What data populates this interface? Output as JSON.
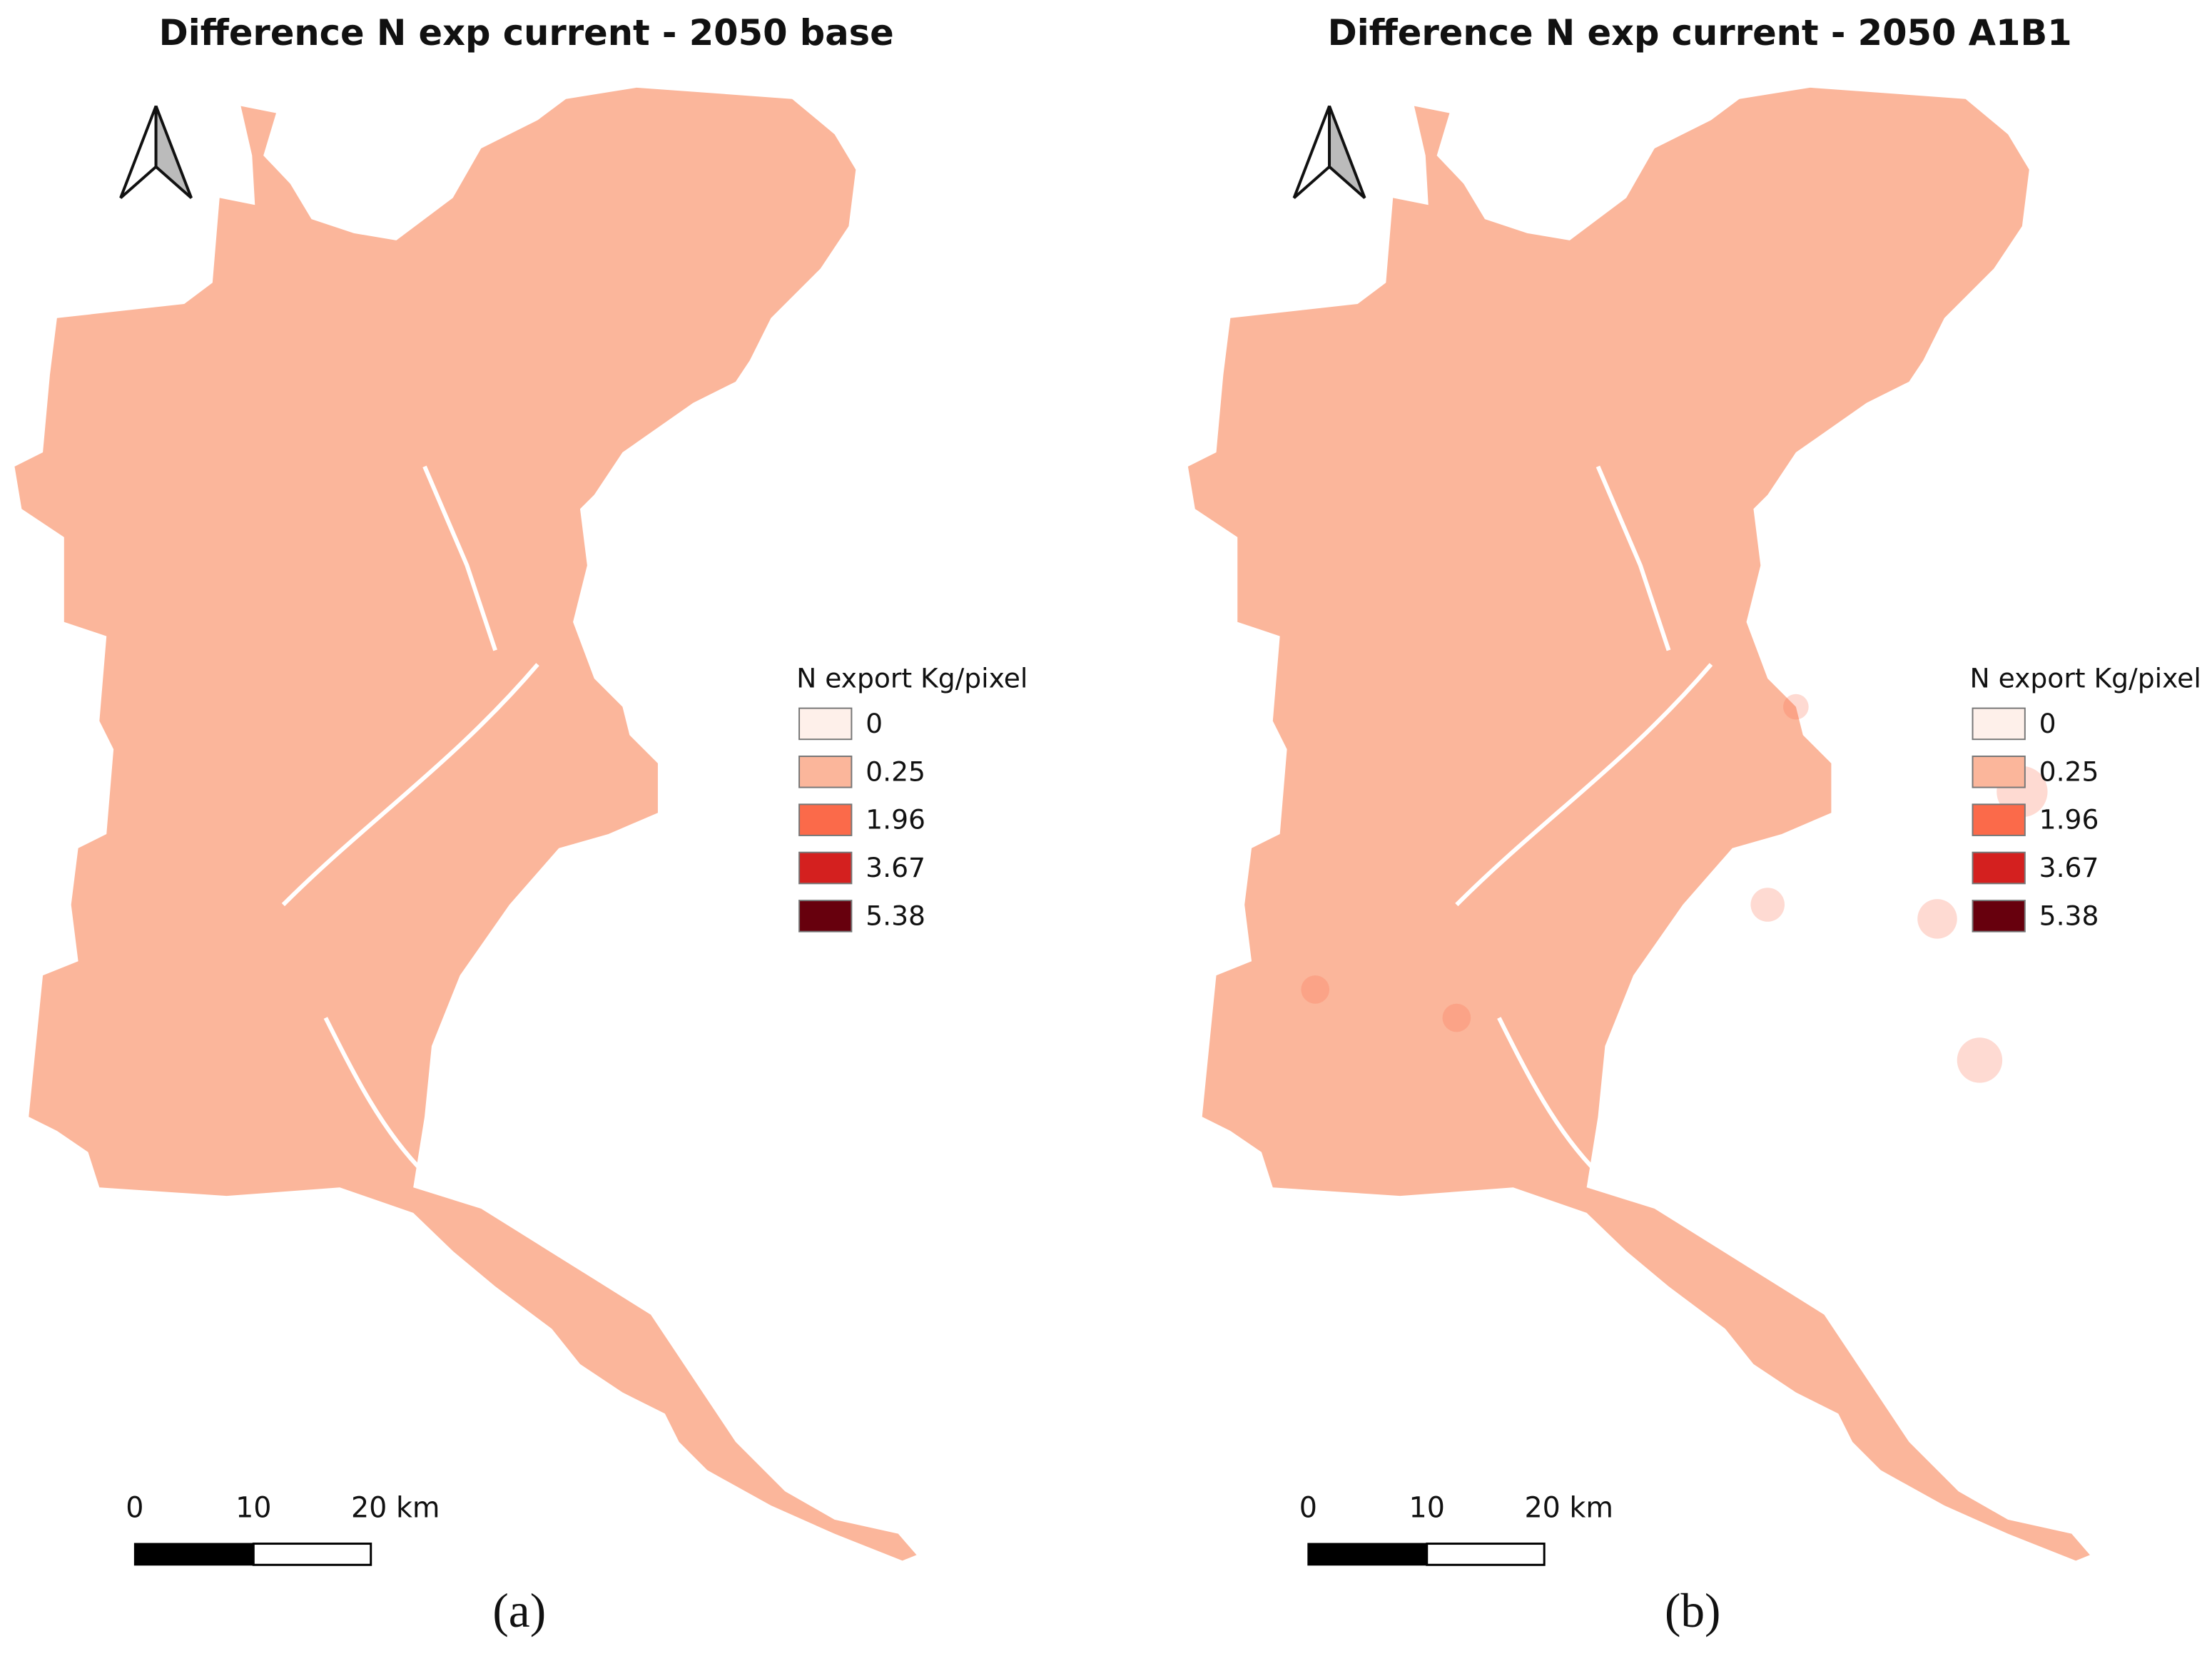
{
  "panels": [
    {
      "title": "Difference N exp current - 2050 base",
      "legend": {
        "title": "N export Kg/pixel",
        "items": [
          {
            "label": "0",
            "color": "#fef0ea"
          },
          {
            "label": "0.25",
            "color": "#fbb69b"
          },
          {
            "label": "1.96",
            "color": "#fb6a4a"
          },
          {
            "label": "3.67",
            "color": "#d4201f"
          },
          {
            "label": "5.38",
            "color": "#67000d"
          }
        ]
      },
      "scale_bar": [
        "0",
        "10",
        "20 km"
      ],
      "caption": "(a)"
    },
    {
      "title": "Difference N exp current - 2050 A1B1",
      "legend": {
        "title": "N export Kg/pixel",
        "items": [
          {
            "label": "0",
            "color": "#fef0ea"
          },
          {
            "label": "0.25",
            "color": "#fbb69b"
          },
          {
            "label": "1.96",
            "color": "#fb6a4a"
          },
          {
            "label": "3.67",
            "color": "#d4201f"
          },
          {
            "label": "5.38",
            "color": "#67000d"
          }
        ]
      },
      "scale_bar": [
        "0",
        "10",
        "20 km"
      ],
      "caption": "(b)"
    }
  ]
}
